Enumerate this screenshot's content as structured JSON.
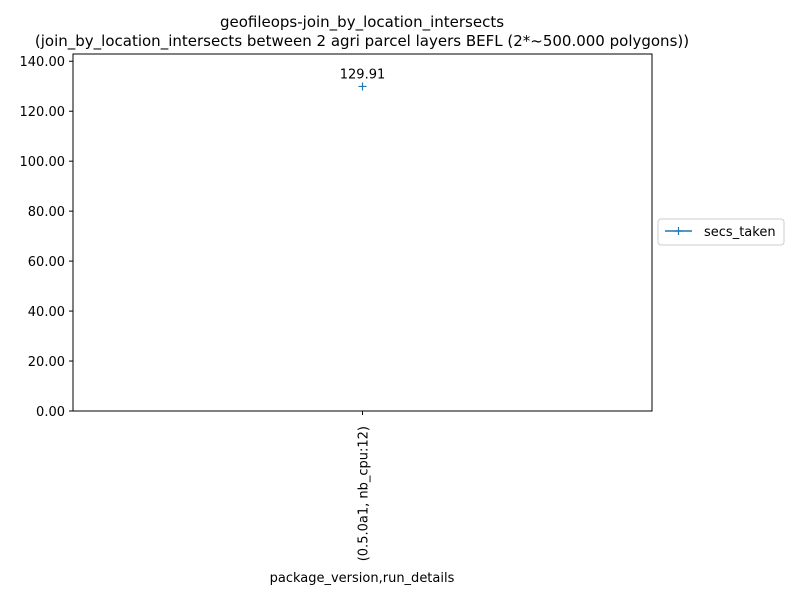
{
  "chart_data": {
    "type": "line",
    "title": "geofileops-join_by_location_intersects",
    "subtitle": "(join_by_location_intersects between 2 agri parcel layers BEFL (2*~500.000 polygons))",
    "xlabel": "package_version,run_details",
    "ylabel": "",
    "categories": [
      "(0.5.0a1, nb_cpu:12)"
    ],
    "series": [
      {
        "name": "secs_taken",
        "values": [
          129.91
        ],
        "color": "#1f77b4",
        "marker": "+"
      }
    ],
    "data_labels": [
      "129.91"
    ],
    "ylim": [
      0,
      142.9
    ],
    "yticks": [
      0,
      20,
      40,
      60,
      80,
      100,
      120,
      140
    ],
    "ytick_labels": [
      "0.00",
      "20.00",
      "40.00",
      "60.00",
      "80.00",
      "100.00",
      "120.00",
      "140.00"
    ],
    "grid": false,
    "legend_position": "outside-right"
  }
}
